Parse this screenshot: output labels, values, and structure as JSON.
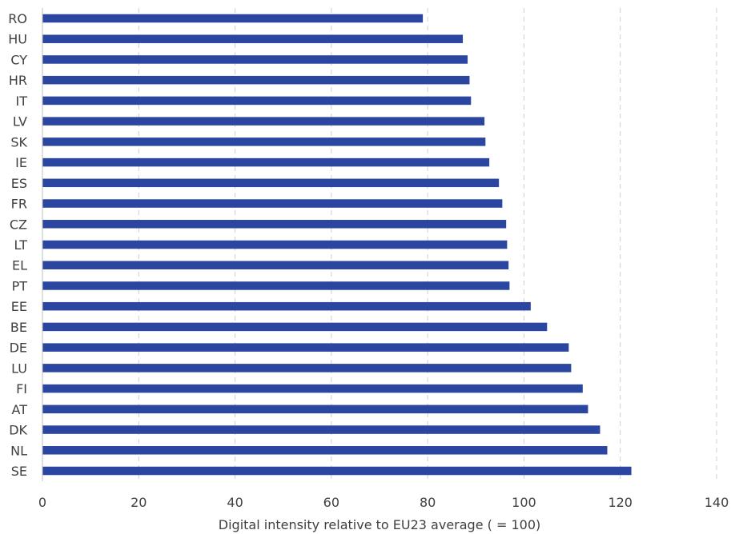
{
  "chart_data": {
    "type": "bar",
    "orientation": "horizontal",
    "categories": [
      "RO",
      "HU",
      "CY",
      "HR",
      "IT",
      "LV",
      "SK",
      "IE",
      "ES",
      "FR",
      "CZ",
      "LT",
      "EL",
      "PT",
      "EE",
      "BE",
      "DE",
      "LU",
      "FI",
      "AT",
      "DK",
      "NL",
      "SE"
    ],
    "values": [
      79,
      87.3,
      88.3,
      88.7,
      89,
      91.8,
      92,
      92.8,
      94.8,
      95.5,
      96.3,
      96.5,
      96.8,
      97,
      101.4,
      104.8,
      109.3,
      109.8,
      112.2,
      113.3,
      115.8,
      117.3,
      122.3
    ],
    "xlabel": "Digital intensity relative to EU23 average ( = 100)",
    "ylabel": "",
    "xlim": [
      0,
      140
    ],
    "xticks": [
      "0",
      "20",
      "40",
      "60",
      "80",
      "100",
      "120",
      "140"
    ],
    "grid": "vertical dashed",
    "colors": {
      "bar": "#2a46a0",
      "grid": "#cfcfcf",
      "text": "#404040"
    }
  }
}
